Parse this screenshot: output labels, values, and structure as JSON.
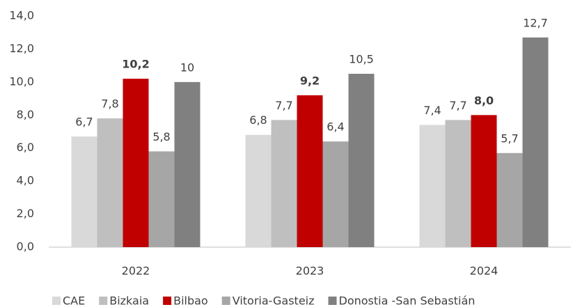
{
  "chart_data": {
    "type": "bar",
    "categories": [
      "2022",
      "2023",
      "2024"
    ],
    "series": [
      {
        "name": "CAE",
        "color": "#d9d9d9",
        "values": [
          6.7,
          6.8,
          7.4
        ],
        "value_labels": [
          "6,7",
          "6,8",
          "7,4"
        ]
      },
      {
        "name": "Bizkaia",
        "color": "#bfbfbf",
        "values": [
          7.8,
          7.7,
          7.7
        ],
        "value_labels": [
          "7,8",
          "7,7",
          "7,7"
        ]
      },
      {
        "name": "Bilbao",
        "color": "#c00000",
        "values": [
          10.2,
          9.2,
          8.0
        ],
        "value_labels": [
          "10,2",
          "9,2",
          "8,0"
        ],
        "bold_labels": true
      },
      {
        "name": "Vitoria-Gasteiz",
        "color": "#a6a6a6",
        "values": [
          5.8,
          6.4,
          5.7
        ],
        "value_labels": [
          "5,8",
          "6,4",
          "5,7"
        ]
      },
      {
        "name": "Donostia -San Sebastián",
        "color": "#808080",
        "values": [
          10,
          10.5,
          12.7
        ],
        "value_labels": [
          "10",
          "10,5",
          "12,7"
        ]
      }
    ],
    "ylim": [
      0,
      14
    ],
    "yticks": [
      {
        "value": 0,
        "label": "0,0"
      },
      {
        "value": 2,
        "label": "2,0"
      },
      {
        "value": 4,
        "label": "4,0"
      },
      {
        "value": 6,
        "label": "6,0"
      },
      {
        "value": 8,
        "label": "8,0"
      },
      {
        "value": 10,
        "label": "10,0"
      },
      {
        "value": 12,
        "label": "12,0"
      },
      {
        "value": 14,
        "label": "14,0"
      }
    ],
    "grid": false,
    "legend": "bottom"
  }
}
